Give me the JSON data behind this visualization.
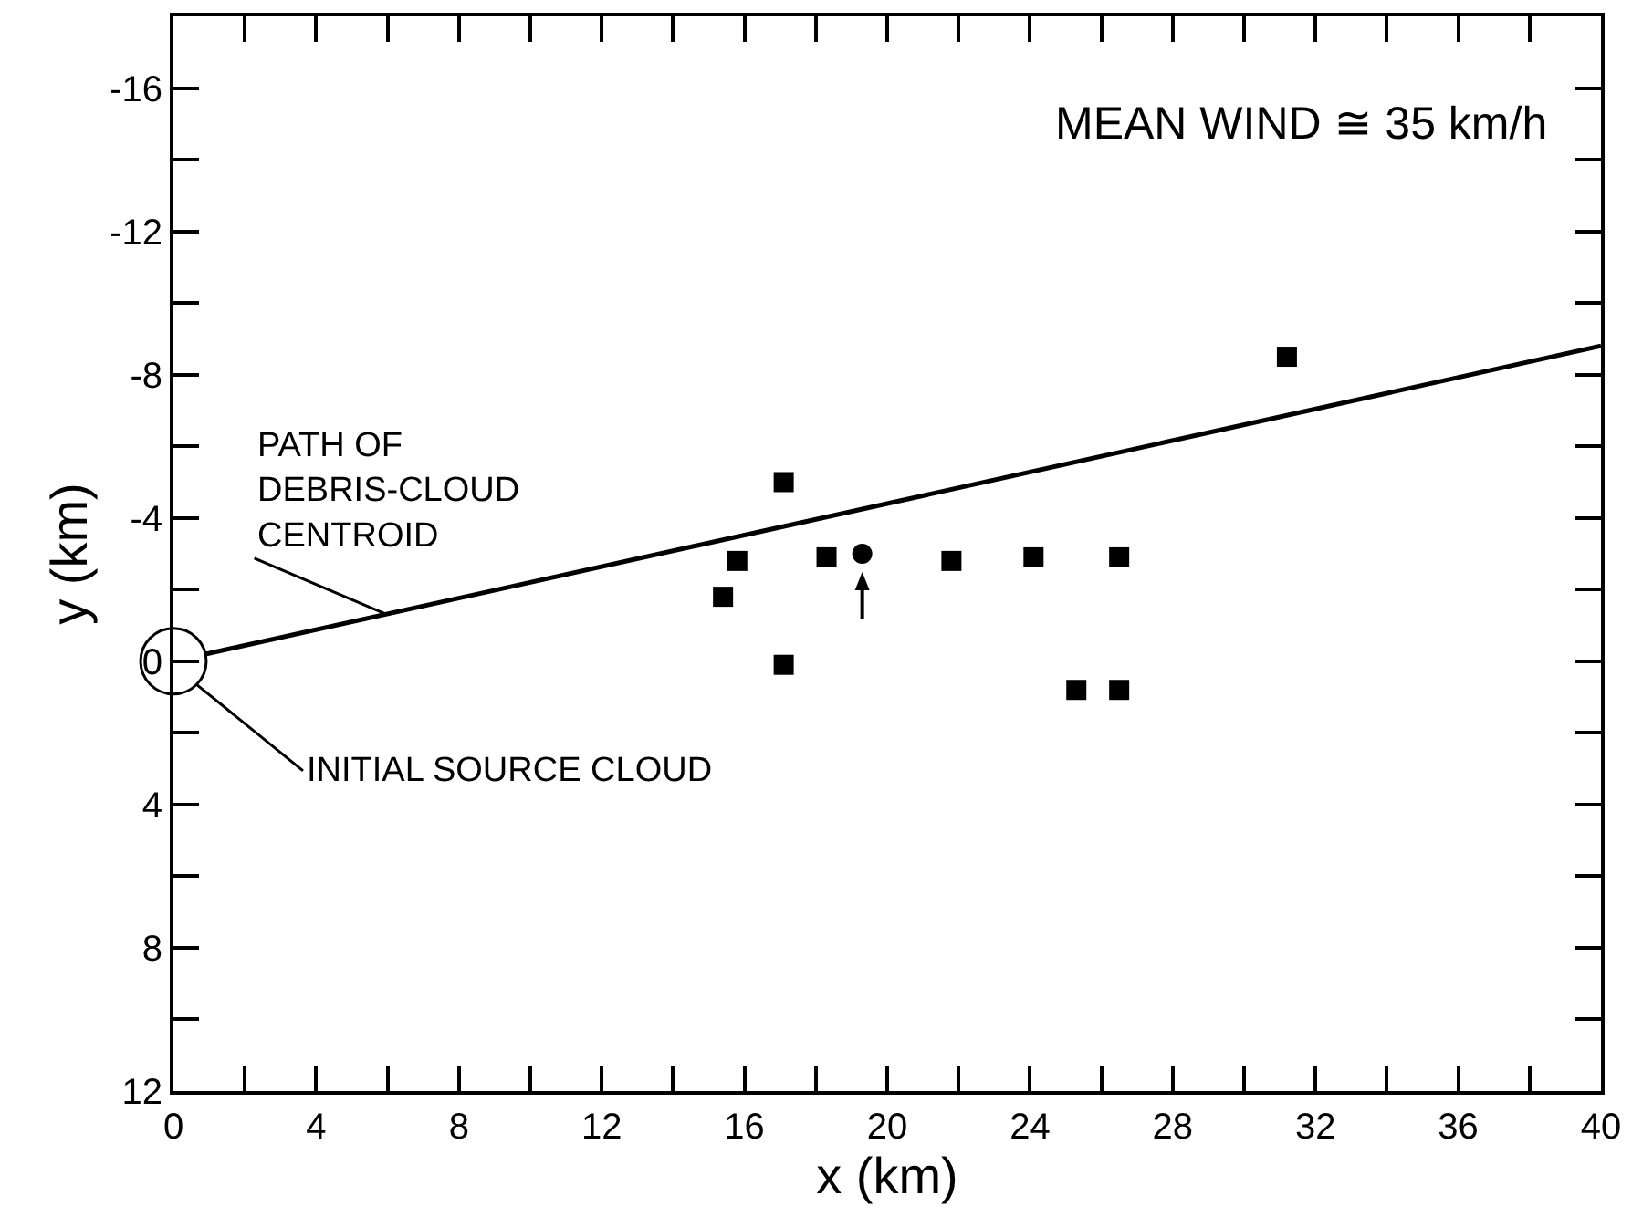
{
  "chart_data": {
    "type": "scatter",
    "xlabel": "x (km)",
    "ylabel": "y (km)",
    "xlim": [
      0,
      40
    ],
    "ylim": [
      12,
      -18
    ],
    "xticks": [
      0,
      {
        "value": 2,
        "label": null
      },
      4,
      {
        "value": 6,
        "label": null
      },
      8,
      {
        "value": 10,
        "label": null
      },
      12,
      {
        "value": 14,
        "label": null
      },
      16,
      {
        "value": 18,
        "label": null
      },
      20,
      {
        "value": 22,
        "label": null
      },
      24,
      {
        "value": 26,
        "label": null
      },
      28,
      {
        "value": 30,
        "label": null
      },
      32,
      {
        "value": 34,
        "label": null
      },
      36,
      {
        "value": 38,
        "label": null
      },
      40
    ],
    "yticks": [
      12,
      {
        "value": 10,
        "label": null
      },
      8,
      {
        "value": 6,
        "label": null
      },
      4,
      {
        "value": 2,
        "label": null
      },
      0,
      {
        "value": -2,
        "label": null
      },
      -4,
      {
        "value": -6,
        "label": null
      },
      -8,
      {
        "value": -10,
        "label": null
      },
      -12,
      {
        "value": -14,
        "label": null
      },
      -16
    ],
    "grid": false,
    "series": [
      {
        "marker": "square",
        "color": "#000000",
        "x": [
          17.1,
          15.8,
          15.4,
          18.3,
          21.8,
          24.1,
          26.5,
          17.1,
          25.3,
          26.5,
          31.2
        ],
        "values": [
          -5.0,
          -2.8,
          -1.8,
          -2.9,
          -2.8,
          -2.9,
          -2.9,
          0.1,
          0.8,
          0.8,
          -8.5
        ]
      },
      {
        "marker": "circle",
        "color": "#000000",
        "x": [
          19.3
        ],
        "values": [
          -3.0
        ]
      },
      {
        "type": "line",
        "marker": "none",
        "line_style": "solid",
        "color": "#000000",
        "x": [
          0.9,
          40
        ],
        "values": [
          -0.2,
          -8.8
        ]
      }
    ],
    "annotations": [
      "MEAN WIND ≅ 35 km/h",
      {
        "text": "PATH OF\nDEBRIS-CLOUD\nCENTROID",
        "x": 6.0,
        "y": -1.3
      },
      "INITIAL SOURCE CLOUD"
    ]
  }
}
